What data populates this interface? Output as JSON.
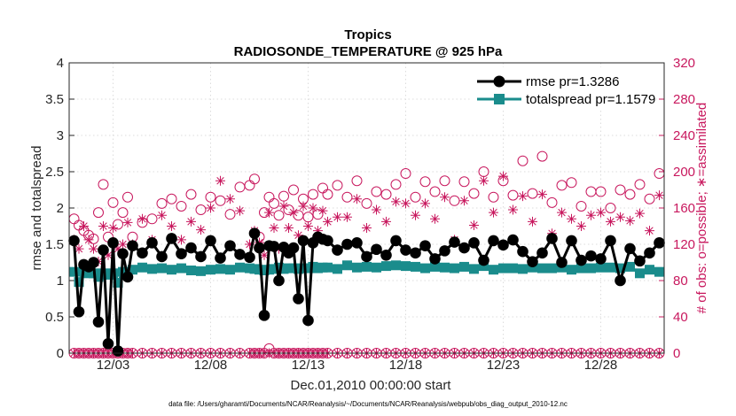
{
  "chart_data": {
    "type": "line",
    "title": "Tropics",
    "subtitle": "RADIOSONDE_TEMPERATURE @ 925 hPa",
    "xlabel": "Dec.01,2010 00:00:00 start",
    "ylabel": "rmse and totalspread",
    "y2label": "# of obs: o=possible; ∗=assimilated",
    "footnote": "data file: /Users/gharamti/Documents/NCAR/Reanalysis/~/Documents/NCAR/Reanalysis/webpub/obs_diag_output_2010-12.nc",
    "xlim": [
      0.75,
      31.25
    ],
    "ylim": [
      0,
      4
    ],
    "y2lim": [
      0,
      320
    ],
    "yticks": [
      "0",
      "0.5",
      "1",
      "1.5",
      "2",
      "2.5",
      "3",
      "3.5",
      "4"
    ],
    "y2ticks": [
      "0",
      "40",
      "80",
      "120",
      "160",
      "200",
      "240",
      "280",
      "320"
    ],
    "xticks": [
      {
        "value": 3,
        "label": "12/03"
      },
      {
        "value": 8,
        "label": "12/08"
      },
      {
        "value": 13,
        "label": "12/13"
      },
      {
        "value": 18,
        "label": "12/18"
      },
      {
        "value": 23,
        "label": "12/23"
      },
      {
        "value": 28,
        "label": "12/28"
      }
    ],
    "legend_position": "top-right",
    "colors": {
      "rmse": "#000000",
      "spread": "#1a8c8c",
      "obs": "#c8185e",
      "axis": "#262626"
    },
    "x": [
      1.0,
      1.25,
      1.5,
      1.75,
      2.0,
      2.25,
      2.5,
      2.75,
      3.0,
      3.25,
      3.5,
      3.75,
      4.0,
      4.5,
      5.0,
      5.5,
      6.0,
      6.5,
      7.0,
      7.5,
      8.0,
      8.5,
      9.0,
      9.5,
      10.0,
      10.25,
      10.5,
      10.75,
      11.0,
      11.25,
      11.5,
      11.75,
      12.0,
      12.25,
      12.5,
      12.75,
      13.0,
      13.25,
      13.5,
      13.75,
      14.0,
      14.5,
      15.0,
      15.5,
      16.0,
      16.5,
      17.0,
      17.5,
      18.0,
      18.5,
      19.0,
      19.5,
      20.0,
      20.5,
      21.0,
      21.5,
      22.0,
      22.5,
      23.0,
      23.5,
      24.0,
      24.5,
      25.0,
      25.5,
      26.0,
      26.5,
      27.0,
      27.5,
      28.0,
      28.5,
      29.0,
      29.5,
      30.0,
      30.5,
      31.0
    ],
    "series": [
      {
        "name": "rmse",
        "legend": "rmse pr=1.3286",
        "values": [
          1.55,
          0.57,
          1.22,
          1.19,
          1.25,
          0.43,
          1.42,
          0.13,
          1.52,
          0.03,
          1.37,
          1.05,
          1.48,
          1.38,
          1.52,
          1.33,
          1.58,
          1.37,
          1.45,
          1.33,
          1.55,
          1.31,
          1.48,
          1.36,
          1.32,
          1.65,
          1.45,
          0.52,
          1.48,
          1.47,
          1.0,
          1.46,
          1.38,
          1.45,
          0.75,
          1.55,
          0.45,
          1.52,
          1.6,
          1.57,
          1.55,
          1.42,
          1.5,
          1.52,
          1.33,
          1.43,
          1.35,
          1.55,
          1.42,
          1.38,
          1.48,
          1.3,
          1.41,
          1.53,
          1.45,
          1.52,
          1.28,
          1.55,
          1.49,
          1.56,
          1.4,
          1.26,
          1.38,
          1.58,
          1.25,
          1.55,
          1.28,
          1.34,
          1.3,
          1.55,
          1.0,
          1.44,
          1.27,
          1.38,
          1.52
        ]
      },
      {
        "name": "totalspread",
        "legend": "totalspread pr=1.1579",
        "values": [
          1.12,
          0.98,
          1.12,
          1.1,
          1.1,
          1.05,
          1.1,
          1.08,
          1.1,
          0.97,
          1.12,
          1.12,
          1.15,
          1.18,
          1.16,
          1.17,
          1.15,
          1.17,
          1.14,
          1.13,
          1.15,
          1.16,
          1.15,
          1.18,
          1.17,
          1.16,
          1.15,
          1.14,
          1.15,
          1.16,
          1.18,
          1.16,
          1.17,
          1.17,
          1.16,
          1.17,
          1.17,
          1.19,
          1.17,
          1.18,
          1.18,
          1.16,
          1.21,
          1.18,
          1.19,
          1.18,
          1.2,
          1.21,
          1.2,
          1.19,
          1.17,
          1.19,
          1.18,
          1.17,
          1.19,
          1.16,
          1.2,
          1.15,
          1.17,
          1.17,
          1.16,
          1.18,
          1.17,
          1.17,
          1.18,
          1.15,
          1.17,
          1.17,
          1.18,
          1.18,
          1.17,
          1.19,
          1.1,
          1.15,
          1.12
        ]
      },
      {
        "name": "possible",
        "axis": "right",
        "marker": "circle",
        "values": [
          148,
          141,
          135,
          130,
          126,
          155,
          186,
          128,
          166,
          142,
          155,
          172,
          128,
          144,
          148,
          165,
          170,
          162,
          175,
          158,
          172,
          168,
          153,
          183,
          185,
          192,
          128,
          155,
          172,
          165,
          152,
          173,
          158,
          180,
          152,
          170,
          150,
          175,
          153,
          182,
          175,
          185,
          172,
          190,
          165,
          178,
          175,
          186,
          198,
          172,
          189,
          178,
          190,
          168,
          189,
          176,
          200,
          172,
          190,
          174,
          212,
          176,
          217,
          166,
          185,
          188,
          162,
          178,
          178,
          160,
          180,
          175,
          186,
          170,
          198
        ]
      },
      {
        "name": "assimilated",
        "axis": "right",
        "marker": "asterisk",
        "values": [
          125,
          115,
          140,
          125,
          115,
          101,
          140,
          108,
          138,
          115,
          120,
          144,
          120,
          148,
          125,
          152,
          140,
          125,
          145,
          136,
          160,
          190,
          170,
          157,
          120,
          135,
          122,
          108,
          155,
          138,
          115,
          162,
          138,
          155,
          130,
          162,
          140,
          160,
          135,
          157,
          145,
          150,
          150,
          170,
          138,
          158,
          145,
          167,
          165,
          152,
          165,
          148,
          172,
          125,
          168,
          141,
          190,
          155,
          195,
          158,
          173,
          145,
          175,
          132,
          155,
          148,
          140,
          152,
          155,
          145,
          150,
          146,
          154,
          135,
          174
        ]
      },
      {
        "name": "possible_low",
        "axis": "right",
        "marker": "circle",
        "values": [
          0,
          0,
          0,
          0,
          0,
          0,
          0,
          0,
          0,
          0,
          0,
          0,
          0,
          0,
          0,
          0,
          0,
          0,
          0,
          0,
          0,
          0,
          0,
          0,
          0,
          0,
          0,
          0,
          5,
          0,
          0,
          0,
          0,
          0,
          0,
          0,
          0,
          0,
          0,
          0,
          0,
          0,
          0,
          0,
          0,
          0,
          0,
          0,
          0,
          0,
          0,
          0,
          0,
          0,
          0,
          0,
          0,
          0,
          0,
          0,
          0,
          0,
          0,
          0,
          0,
          0,
          0,
          0,
          0,
          0,
          0,
          0,
          0,
          0,
          0
        ]
      },
      {
        "name": "assimilated_low",
        "axis": "right",
        "marker": "asterisk",
        "values": [
          0,
          0,
          0,
          0,
          0,
          0,
          0,
          0,
          0,
          0,
          0,
          0,
          0,
          0,
          0,
          0,
          0,
          0,
          0,
          0,
          0,
          0,
          0,
          0,
          0,
          0,
          0,
          0,
          0,
          0,
          0,
          0,
          0,
          0,
          0,
          0,
          0,
          0,
          0,
          0,
          0,
          0,
          0,
          0,
          0,
          0,
          0,
          0,
          0,
          0,
          0,
          0,
          0,
          0,
          0,
          0,
          0,
          0,
          0,
          0,
          0,
          0,
          0,
          0,
          0,
          0,
          0,
          0,
          0,
          0,
          0,
          0,
          0,
          0,
          0
        ]
      }
    ]
  }
}
